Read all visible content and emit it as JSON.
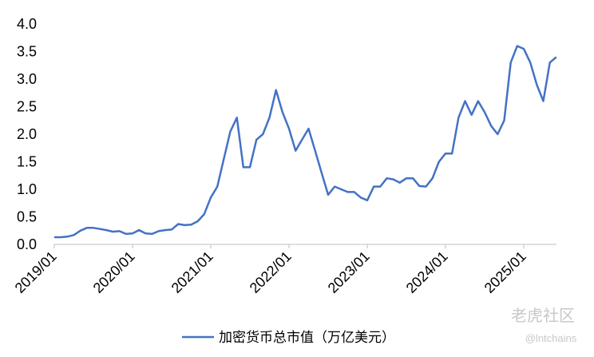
{
  "chart_data": {
    "type": "line",
    "x": [
      "2019/01",
      "2019/02",
      "2019/03",
      "2019/04",
      "2019/05",
      "2019/06",
      "2019/07",
      "2019/08",
      "2019/09",
      "2019/10",
      "2019/11",
      "2019/12",
      "2020/01",
      "2020/02",
      "2020/03",
      "2020/04",
      "2020/05",
      "2020/06",
      "2020/07",
      "2020/08",
      "2020/09",
      "2020/10",
      "2020/11",
      "2020/12",
      "2021/01",
      "2021/02",
      "2021/03",
      "2021/04",
      "2021/05",
      "2021/06",
      "2021/07",
      "2021/08",
      "2021/09",
      "2021/10",
      "2021/11",
      "2021/12",
      "2022/01",
      "2022/02",
      "2022/03",
      "2022/04",
      "2022/05",
      "2022/06",
      "2022/07",
      "2022/08",
      "2022/09",
      "2022/10",
      "2022/11",
      "2022/12",
      "2023/01",
      "2023/02",
      "2023/03",
      "2023/04",
      "2023/05",
      "2023/06",
      "2023/07",
      "2023/08",
      "2023/09",
      "2023/10",
      "2023/11",
      "2023/12",
      "2024/01",
      "2024/02",
      "2024/03",
      "2024/04",
      "2024/05",
      "2024/06",
      "2024/07",
      "2024/08",
      "2024/09",
      "2024/10",
      "2024/11",
      "2024/12",
      "2025/01",
      "2025/02",
      "2025/03",
      "2025/04",
      "2025/05",
      "2025/06"
    ],
    "series": [
      {
        "name": "加密货币总市值（万亿美元）",
        "color": "#4472c4",
        "values": [
          0.13,
          0.13,
          0.14,
          0.17,
          0.25,
          0.3,
          0.3,
          0.28,
          0.26,
          0.23,
          0.24,
          0.19,
          0.2,
          0.26,
          0.2,
          0.19,
          0.24,
          0.26,
          0.27,
          0.37,
          0.35,
          0.36,
          0.42,
          0.55,
          0.85,
          1.05,
          1.55,
          2.05,
          2.3,
          1.4,
          1.4,
          1.9,
          2.0,
          2.3,
          2.8,
          2.4,
          2.1,
          1.7,
          1.9,
          2.1,
          1.7,
          1.3,
          0.9,
          1.05,
          1.0,
          0.95,
          0.95,
          0.85,
          0.8,
          1.05,
          1.05,
          1.2,
          1.18,
          1.12,
          1.2,
          1.2,
          1.06,
          1.05,
          1.2,
          1.5,
          1.65,
          1.65,
          2.3,
          2.6,
          2.35,
          2.6,
          2.4,
          2.15,
          2.0,
          2.25,
          3.3,
          3.6,
          3.55,
          3.3,
          2.9,
          2.6,
          3.3,
          3.4
        ]
      }
    ],
    "xticks": [
      "2019/01",
      "2020/01",
      "2021/01",
      "2022/01",
      "2023/01",
      "2024/01",
      "2025/01"
    ],
    "ylim": [
      0,
      4
    ],
    "yticks": [
      {
        "value": 0,
        "label": "0.0"
      },
      {
        "value": 0.5,
        "label": "0.5"
      },
      {
        "value": 1,
        "label": "1.0"
      },
      {
        "value": 1.5,
        "label": "1.5"
      },
      {
        "value": 2,
        "label": "2.0"
      },
      {
        "value": 2.5,
        "label": "2.5"
      },
      {
        "value": 3,
        "label": "3.0"
      },
      {
        "value": 3.5,
        "label": "3.5"
      },
      {
        "value": 4,
        "label": "4.0"
      }
    ],
    "watermark": [
      "老虎社区",
      "@lntchains"
    ]
  }
}
